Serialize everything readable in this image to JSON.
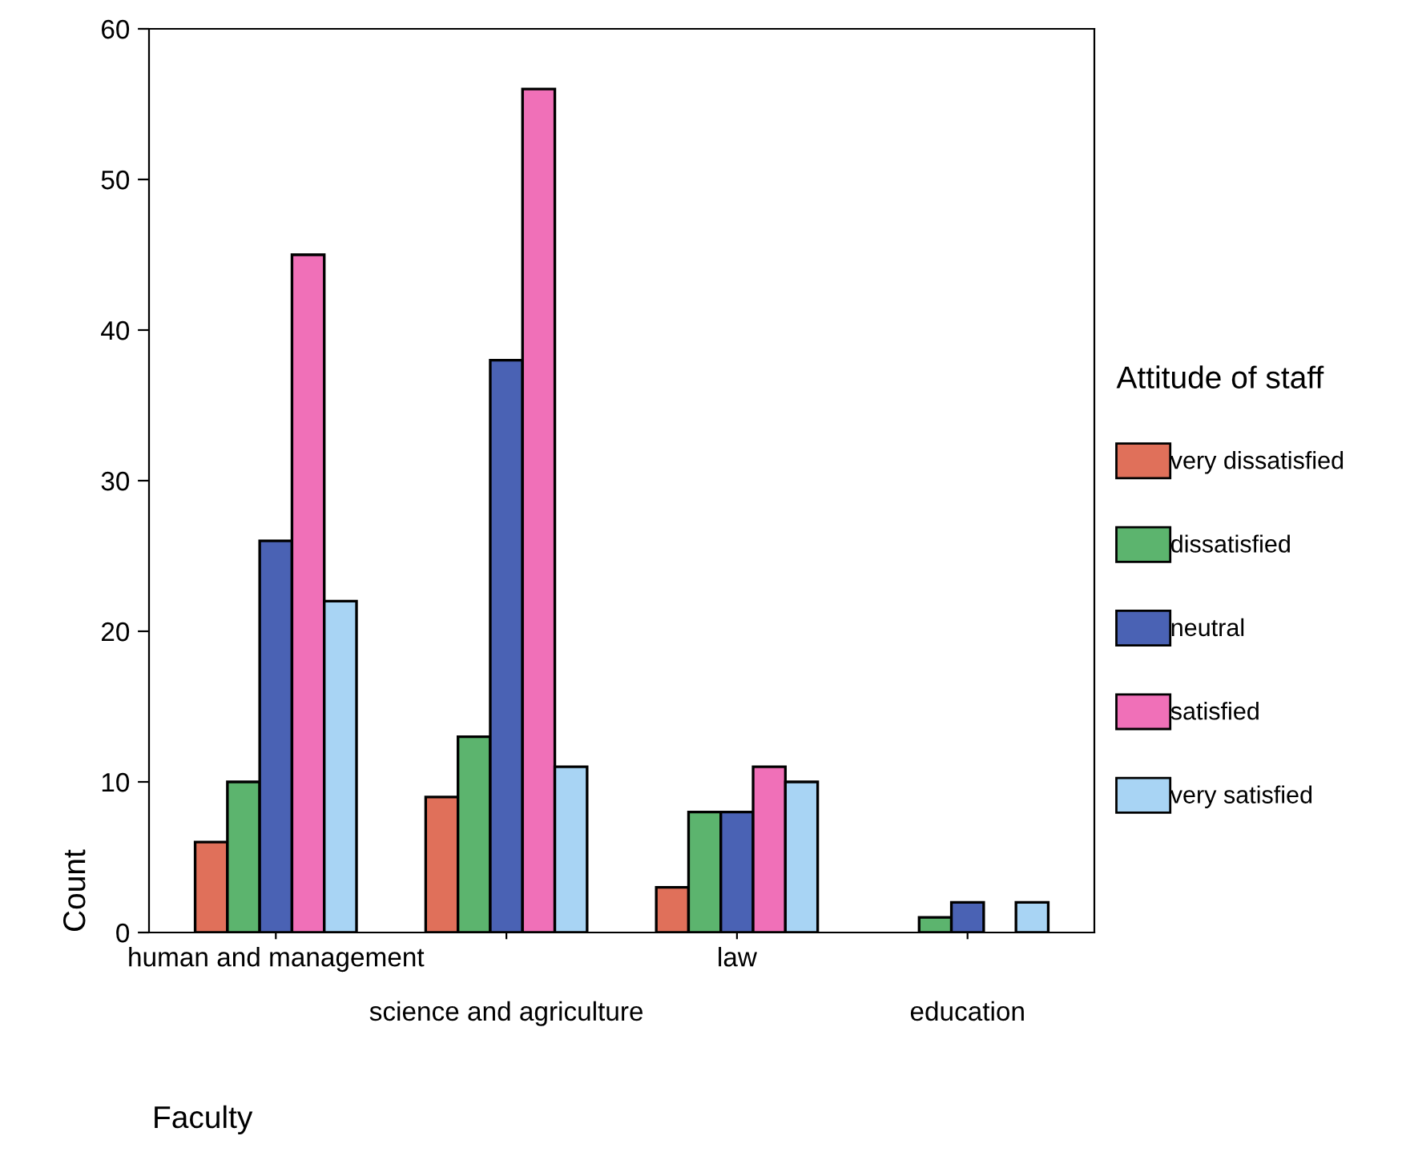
{
  "chart_data": {
    "type": "bar",
    "xlabel": "Faculty",
    "ylabel": "Count",
    "legend_title": "Attitude of staff",
    "categories": [
      "human and management",
      "science and agriculture",
      "law",
      "education"
    ],
    "series": [
      {
        "name": "very dissatisfied",
        "color": "#e0705a",
        "values": [
          6,
          9,
          3,
          null
        ]
      },
      {
        "name": "dissatisfied",
        "color": "#5cb46e",
        "values": [
          10,
          13,
          8,
          1
        ]
      },
      {
        "name": "neutral",
        "color": "#4a62b4",
        "values": [
          26,
          38,
          8,
          2
        ]
      },
      {
        "name": "satisfied",
        "color": "#f070b8",
        "values": [
          45,
          56,
          11,
          null
        ]
      },
      {
        "name": "very satisfied",
        "color": "#a8d4f4",
        "values": [
          22,
          11,
          10,
          2
        ]
      }
    ],
    "ylim": [
      0,
      60
    ],
    "yticks": [
      0,
      10,
      20,
      30,
      40,
      50,
      60
    ],
    "grid": false,
    "legend": "right"
  }
}
